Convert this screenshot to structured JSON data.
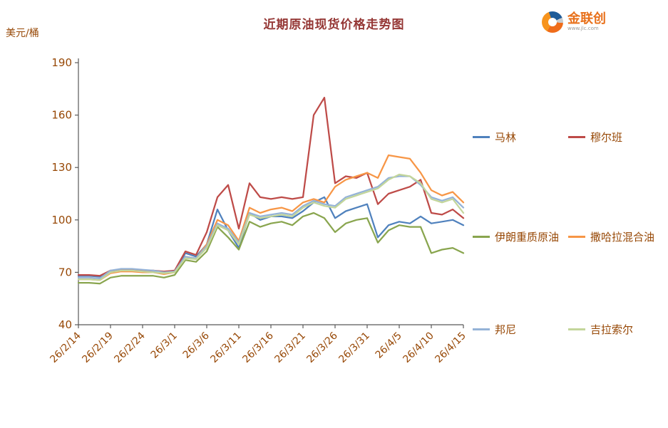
{
  "page": {
    "title": "近期原油现货价格走势图"
  },
  "logo": {
    "name": "金联创",
    "subtext": "www.jlc.com",
    "color": "#E8701A"
  },
  "colors": {
    "text": "#974806",
    "title": "#953735",
    "axis": "#595959",
    "background": "#ffffff"
  },
  "chart_data": {
    "type": "line",
    "title": "近期原油现货价格走势图",
    "xlabel": "",
    "ylabel": "美元/桶",
    "ylim": [
      40,
      190
    ],
    "yticks": [
      40,
      70,
      100,
      130,
      160,
      190
    ],
    "grid": false,
    "legend_position": "right",
    "x_label_rotation": -45,
    "label_every": 3,
    "x_labels": [
      "26/2/14",
      "26/2/19",
      "26/2/24",
      "26/3/1",
      "26/3/6",
      "26/3/11",
      "26/3/16",
      "26/3/21",
      "26/3/26",
      "26/3/31",
      "26/4/5",
      "26/4/10",
      "26/4/15"
    ],
    "series": [
      {
        "name": "马林",
        "color": "#4F81BD",
        "values": [
          68,
          68,
          67.5,
          70,
          71,
          71,
          71,
          70.5,
          70,
          70,
          81,
          79,
          86,
          106,
          94,
          84,
          104,
          100,
          102,
          102,
          101,
          105,
          110,
          113,
          101,
          105,
          107,
          109,
          90,
          97,
          99,
          98,
          102,
          98,
          99,
          100,
          97
        ]
      },
      {
        "name": "穆尔班",
        "color": "#BE4B48",
        "values": [
          68.5,
          68.5,
          68,
          71,
          71.5,
          71.5,
          71,
          71,
          70.5,
          71,
          82,
          80,
          93,
          113,
          120,
          95,
          121,
          113,
          112,
          113,
          112,
          113,
          160,
          170,
          121,
          125,
          124,
          127,
          109,
          115,
          117,
          119,
          123,
          104,
          103,
          106,
          101
        ]
      },
      {
        "name": "伊朗重质原油",
        "color": "#89A54E",
        "values": [
          64,
          64,
          63.5,
          67,
          68,
          68,
          68,
          68,
          67,
          68.5,
          77,
          76,
          82,
          96,
          90,
          83,
          99,
          96,
          98,
          99,
          97,
          102,
          104,
          101,
          93,
          98,
          100,
          101,
          87,
          94,
          97,
          96,
          96,
          81,
          83,
          84,
          81
        ]
      },
      {
        "name": "撒哈拉混合油",
        "color": "#F79646",
        "values": [
          66,
          66,
          65.5,
          69.5,
          70.5,
          70.5,
          70,
          70,
          69,
          70,
          79,
          78,
          86,
          100,
          97,
          88,
          107,
          104,
          106,
          107,
          105,
          110,
          112,
          110,
          119,
          123,
          125,
          127,
          124,
          137,
          136,
          135,
          127,
          117,
          114,
          116,
          110
        ]
      },
      {
        "name": "邦尼",
        "color": "#95B3D7",
        "values": [
          67,
          67,
          66.5,
          71,
          72,
          72,
          71.5,
          71,
          70,
          70.5,
          79,
          78,
          85,
          98,
          95,
          87,
          104,
          102,
          103,
          104,
          103,
          108,
          111,
          109,
          108,
          113,
          115,
          117,
          119,
          124,
          125,
          125,
          120,
          113,
          111,
          113,
          107
        ]
      },
      {
        "name": "吉拉索尔",
        "color": "#C3D69B",
        "values": [
          66,
          66,
          65.5,
          70,
          71,
          71,
          70.5,
          70,
          69.5,
          70,
          78,
          77.5,
          84,
          97,
          94,
          86,
          103,
          101,
          102,
          103,
          102,
          107,
          110,
          108,
          107,
          112,
          114,
          116,
          118,
          123,
          126,
          125,
          121,
          112,
          110,
          112,
          104
        ]
      }
    ]
  }
}
